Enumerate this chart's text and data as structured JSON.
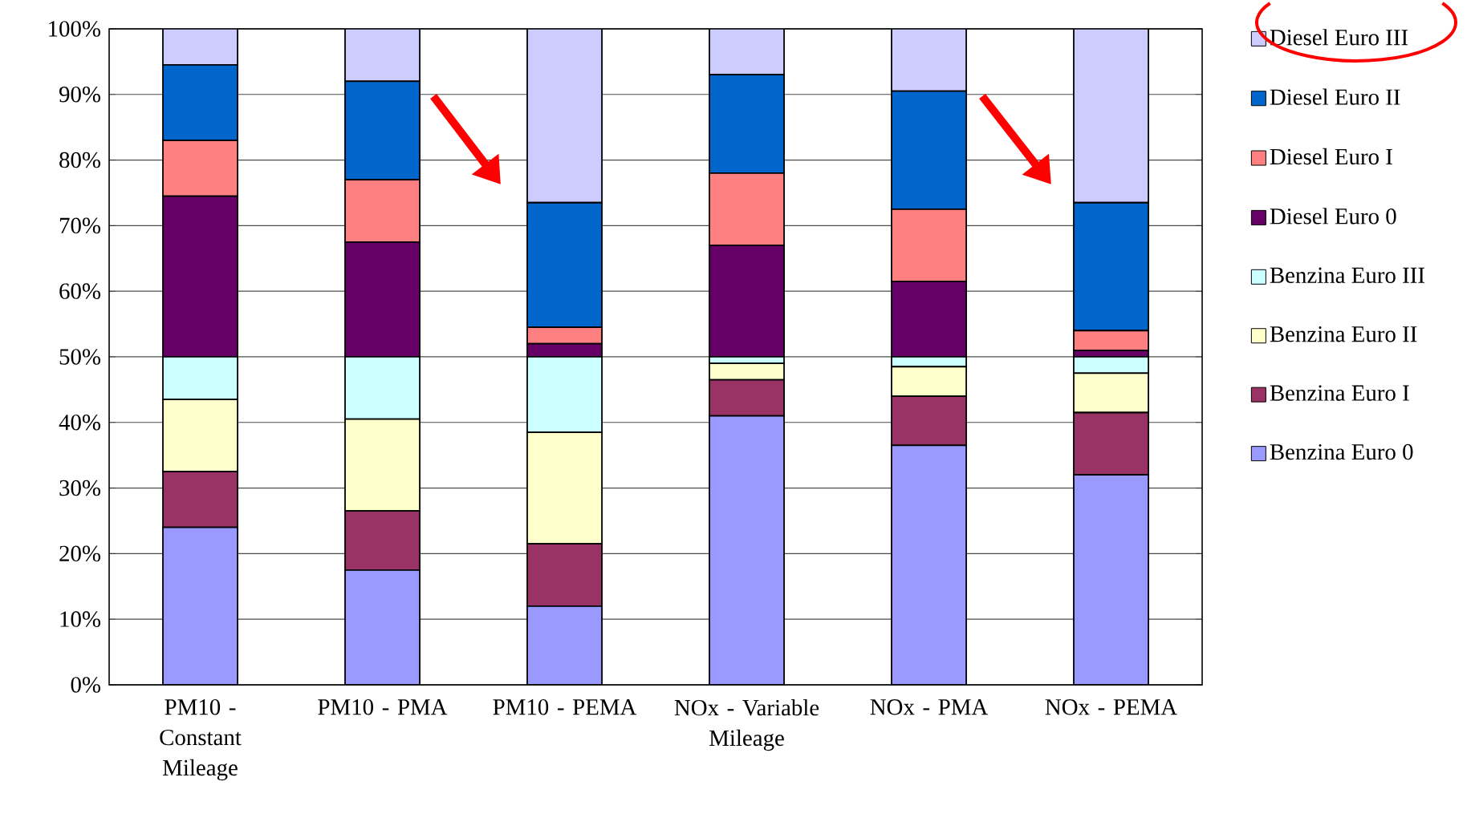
{
  "chart_data": {
    "type": "bar",
    "stacked": true,
    "categories": [
      "PM10 - Constant Mileage",
      "PM10 - PMA",
      "PM10 - PEMA",
      "NOx - Variable Mileage",
      "NOx - PMA",
      "NOx - PEMA"
    ],
    "series": [
      {
        "name": "Benzina Euro 0",
        "color": "#9999ff",
        "values": [
          24,
          17.5,
          12,
          41,
          36.5,
          32
        ]
      },
      {
        "name": "Benzina Euro I",
        "color": "#993366",
        "values": [
          8.5,
          9,
          9.5,
          5.5,
          7.5,
          9.5
        ]
      },
      {
        "name": "Benzina Euro II",
        "color": "#ffffcc",
        "values": [
          11,
          14,
          17,
          2.5,
          4.5,
          6
        ]
      },
      {
        "name": "Benzina Euro III",
        "color": "#ccffff",
        "values": [
          6.5,
          9.5,
          11.5,
          1,
          1.5,
          2.5
        ]
      },
      {
        "name": "Diesel Euro 0",
        "color": "#660066",
        "values": [
          24.5,
          17.5,
          2,
          17,
          11.5,
          1
        ]
      },
      {
        "name": "Diesel Euro I",
        "color": "#ff8080",
        "values": [
          8.5,
          9.5,
          2.5,
          11,
          11,
          3
        ]
      },
      {
        "name": "Diesel Euro II",
        "color": "#0066cc",
        "values": [
          11.5,
          15,
          19,
          15,
          18,
          19.5
        ]
      },
      {
        "name": "Diesel Euro III",
        "color": "#ccccff",
        "values": [
          5.5,
          8,
          26.5,
          7,
          9.5,
          26.5
        ]
      }
    ],
    "ylim": [
      0,
      100
    ],
    "yticks": [
      {
        "value": 0,
        "label": "0%"
      },
      {
        "value": 10,
        "label": "10%"
      },
      {
        "value": 20,
        "label": "20%"
      },
      {
        "value": 30,
        "label": "30%"
      },
      {
        "value": 40,
        "label": "40%"
      },
      {
        "value": 50,
        "label": "50%"
      },
      {
        "value": 60,
        "label": "60%"
      },
      {
        "value": 70,
        "label": "70%"
      },
      {
        "value": 80,
        "label": "80%"
      },
      {
        "value": 90,
        "label": "90%"
      },
      {
        "value": 100,
        "label": "100%"
      }
    ],
    "grid": "y",
    "legend": "right"
  }
}
